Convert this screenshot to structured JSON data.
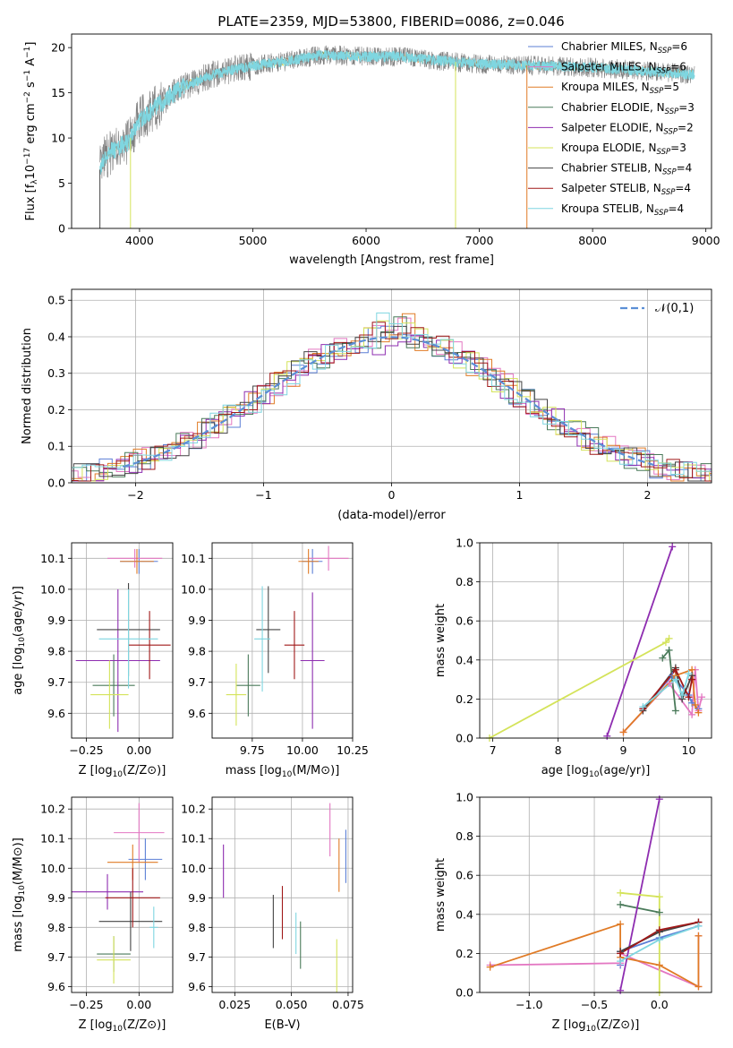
{
  "figure": {
    "title": "PLATE=2359, MJD=53800, FIBERID=0086, z=0.046"
  },
  "legend_entries": [
    {
      "label": "Chabrier MILES, N",
      "sub": "SSP",
      "suffix": "=6",
      "color": "#5b7fd6"
    },
    {
      "label": "Salpeter MILES, N",
      "sub": "SSP",
      "suffix": "=6",
      "color": "#e377c2"
    },
    {
      "label": "Kroupa MILES, N",
      "sub": "SSP",
      "suffix": "=5",
      "color": "#e07b26"
    },
    {
      "label": "Chabrier ELODIE, N",
      "sub": "SSP",
      "suffix": "=3",
      "color": "#4a7a5a"
    },
    {
      "label": "Salpeter ELODIE, N",
      "sub": "SSP",
      "suffix": "=2",
      "color": "#8e2db0"
    },
    {
      "label": "Kroupa ELODIE, N",
      "sub": "SSP",
      "suffix": "=3",
      "color": "#d4e35a"
    },
    {
      "label": "Chabrier STELIB, N",
      "sub": "SSP",
      "suffix": "=4",
      "color": "#444444"
    },
    {
      "label": "Salpeter STELIB, N",
      "sub": "SSP",
      "suffix": "=4",
      "color": "#a01818"
    },
    {
      "label": "Kroupa STELIB, N",
      "sub": "SSP",
      "suffix": "=4",
      "color": "#7fd6e0"
    }
  ],
  "chart_data": [
    {
      "id": "spectrum",
      "type": "line",
      "xlabel": "wavelength [Angstrom, rest frame]",
      "ylabel": "Flux [f",
      "xlim": [
        3400,
        9050
      ],
      "ylim": [
        0,
        21.5
      ],
      "xticks": [
        4000,
        5000,
        6000,
        7000,
        8000,
        9000
      ],
      "yticks": [
        0,
        5,
        10,
        15,
        20
      ],
      "data_color": "#7f7f7f",
      "model_color": "#7fd6e0",
      "continuum": {
        "x": [
          3650,
          3700,
          3800,
          3900,
          4000,
          4200,
          4400,
          4600,
          4800,
          5000,
          5300,
          5600,
          6000,
          6300,
          6600,
          7000,
          7500,
          8000,
          8500,
          8900
        ],
        "y": [
          6.5,
          8.0,
          9.0,
          9.5,
          12.0,
          14.0,
          15.8,
          16.8,
          17.5,
          18.0,
          18.5,
          19.2,
          19.0,
          19.0,
          18.6,
          18.2,
          18.0,
          17.8,
          17.4,
          17.0
        ]
      },
      "xrange_data": [
        3650,
        8900
      ]
    },
    {
      "id": "residuals",
      "type": "area",
      "xlabel": "(data-model)/error",
      "ylabel": "Normed distribution",
      "xlim": [
        -2.5,
        2.5
      ],
      "ylim": [
        0,
        0.53
      ],
      "xticks": [
        -2,
        -1,
        0,
        1,
        2
      ],
      "yticks": [
        0.0,
        0.1,
        0.2,
        0.3,
        0.4,
        0.5
      ],
      "grid": true,
      "reference_label": "𝒩(0,1)",
      "reference_color": "#5b8fd6"
    },
    {
      "id": "age_vs_Z",
      "type": "scatter",
      "xlabel": "Z [log",
      "ylabel": "age  [log",
      "xlim": [
        -0.32,
        0.16
      ],
      "ylim": [
        9.52,
        10.15
      ],
      "xticks": [
        -0.25,
        0.0
      ],
      "yticks": [
        9.6,
        9.7,
        9.8,
        9.9,
        10.0,
        10.1
      ],
      "points": [
        {
          "x": 0.0,
          "y": 10.09,
          "xerr": 0.09,
          "yerr": 0.04,
          "series": 0
        },
        {
          "x": -0.02,
          "y": 10.1,
          "xerr": 0.13,
          "yerr": 0.03,
          "series": 1
        },
        {
          "x": -0.01,
          "y": 10.09,
          "xerr": 0.08,
          "yerr": 0.04,
          "series": 2
        },
        {
          "x": -0.12,
          "y": 9.69,
          "xerr": 0.1,
          "yerr": 0.1,
          "series": 3
        },
        {
          "x": -0.1,
          "y": 9.77,
          "xerr": 0.2,
          "yerr": 0.23,
          "series": 4
        },
        {
          "x": -0.14,
          "y": 9.66,
          "xerr": 0.09,
          "yerr": 0.11,
          "series": 5
        },
        {
          "x": -0.05,
          "y": 9.87,
          "xerr": 0.15,
          "yerr": 0.15,
          "series": 6
        },
        {
          "x": 0.05,
          "y": 9.82,
          "xerr": 0.1,
          "yerr": 0.11,
          "series": 7
        },
        {
          "x": -0.05,
          "y": 9.84,
          "xerr": 0.14,
          "yerr": 0.16,
          "series": 8
        }
      ]
    },
    {
      "id": "age_vs_mass",
      "type": "scatter",
      "xlabel": "mass [log",
      "ylabel": "",
      "xlim": [
        9.55,
        10.25
      ],
      "ylim": [
        9.52,
        10.15
      ],
      "xticks": [
        9.75,
        10.0,
        10.25
      ],
      "yticks": [
        9.6,
        9.7,
        9.8,
        9.9,
        10.0,
        10.1
      ],
      "points": [
        {
          "x": 10.05,
          "y": 10.09,
          "xerr": 0.05,
          "yerr": 0.04,
          "series": 0
        },
        {
          "x": 10.13,
          "y": 10.1,
          "xerr": 0.1,
          "yerr": 0.04,
          "series": 1
        },
        {
          "x": 10.03,
          "y": 10.09,
          "xerr": 0.05,
          "yerr": 0.04,
          "series": 2
        },
        {
          "x": 9.73,
          "y": 9.69,
          "xerr": 0.06,
          "yerr": 0.1,
          "series": 3
        },
        {
          "x": 10.05,
          "y": 9.77,
          "xerr": 0.06,
          "yerr": 0.22,
          "series": 4
        },
        {
          "x": 9.67,
          "y": 9.66,
          "xerr": 0.05,
          "yerr": 0.1,
          "series": 5
        },
        {
          "x": 9.83,
          "y": 9.87,
          "xerr": 0.06,
          "yerr": 0.14,
          "series": 6
        },
        {
          "x": 9.96,
          "y": 9.82,
          "xerr": 0.05,
          "yerr": 0.11,
          "series": 7
        },
        {
          "x": 9.8,
          "y": 9.84,
          "xerr": 0.04,
          "yerr": 0.17,
          "series": 8
        }
      ]
    },
    {
      "id": "weight_vs_age",
      "type": "line",
      "xlabel": "age  [log",
      "ylabel": "mass weight",
      "xlim": [
        6.8,
        10.35
      ],
      "ylim": [
        0,
        1.0
      ],
      "xticks": [
        7,
        8,
        9,
        10
      ],
      "yticks": [
        0.0,
        0.2,
        0.4,
        0.6,
        0.8,
        1.0
      ],
      "grid": true,
      "series": [
        {
          "x": [
            9.3,
            9.75,
            10.0,
            10.05,
            10.15
          ],
          "y": [
            0.15,
            0.32,
            0.22,
            0.18,
            0.15
          ],
          "series": 0
        },
        {
          "x": [
            9.0,
            9.7,
            10.05,
            10.1,
            10.15,
            10.2
          ],
          "y": [
            0.03,
            0.28,
            0.12,
            0.35,
            0.14,
            0.21
          ],
          "series": 1
        },
        {
          "x": [
            9.0,
            9.8,
            10.05,
            10.1,
            10.15
          ],
          "y": [
            0.03,
            0.32,
            0.35,
            0.17,
            0.13
          ],
          "series": 2
        },
        {
          "x": [
            9.6,
            9.7,
            9.8
          ],
          "y": [
            0.41,
            0.45,
            0.14
          ],
          "series": 3
        },
        {
          "x": [
            8.75,
            9.75
          ],
          "y": [
            0.01,
            0.98
          ],
          "series": 4
        },
        {
          "x": [
            6.95,
            9.65,
            9.7
          ],
          "y": [
            0.0,
            0.49,
            0.51
          ],
          "series": 5
        },
        {
          "x": [
            9.3,
            9.8,
            9.9,
            10.05
          ],
          "y": [
            0.14,
            0.36,
            0.2,
            0.32
          ],
          "series": 6
        },
        {
          "x": [
            9.3,
            9.8,
            10.0,
            10.05
          ],
          "y": [
            0.15,
            0.35,
            0.21,
            0.3
          ],
          "series": 7
        },
        {
          "x": [
            9.3,
            9.8,
            9.9,
            10.0
          ],
          "y": [
            0.16,
            0.3,
            0.22,
            0.33
          ],
          "series": 8
        }
      ]
    },
    {
      "id": "mass_vs_Z",
      "type": "scatter",
      "xlabel": "Z [log",
      "ylabel": "mass [log",
      "xlim": [
        -0.32,
        0.16
      ],
      "ylim": [
        9.58,
        10.24
      ],
      "xticks": [
        -0.25,
        0.0
      ],
      "yticks": [
        9.6,
        9.7,
        9.8,
        9.9,
        10.0,
        10.1,
        10.2
      ],
      "points": [
        {
          "x": 0.03,
          "y": 10.03,
          "xerr": 0.08,
          "yerr": 0.07,
          "series": 0
        },
        {
          "x": 0.0,
          "y": 10.12,
          "xerr": 0.12,
          "yerr": 0.1,
          "series": 1
        },
        {
          "x": -0.03,
          "y": 10.02,
          "xerr": 0.12,
          "yerr": 0.06,
          "series": 2
        },
        {
          "x": -0.12,
          "y": 9.71,
          "xerr": 0.08,
          "yerr": 0.06,
          "series": 3
        },
        {
          "x": -0.15,
          "y": 9.92,
          "xerr": 0.17,
          "yerr": 0.06,
          "series": 4
        },
        {
          "x": -0.12,
          "y": 9.69,
          "xerr": 0.08,
          "yerr": 0.08,
          "series": 5
        },
        {
          "x": -0.04,
          "y": 9.82,
          "xerr": 0.15,
          "yerr": 0.1,
          "series": 6
        },
        {
          "x": -0.03,
          "y": 9.9,
          "xerr": 0.13,
          "yerr": 0.1,
          "series": 7
        },
        {
          "x": 0.07,
          "y": 9.8,
          "xerr": 0.02,
          "yerr": 0.07,
          "series": 8
        }
      ]
    },
    {
      "id": "mass_vs_EBV",
      "type": "scatter",
      "xlabel": "E(B-V)",
      "ylabel": "",
      "xlim": [
        0.015,
        0.077
      ],
      "ylim": [
        9.58,
        10.24
      ],
      "xticks": [
        0.025,
        0.05,
        0.075
      ],
      "yticks": [
        9.6,
        9.7,
        9.8,
        9.9,
        10.0,
        10.1,
        10.2
      ],
      "points": [
        {
          "x": 0.074,
          "y": 10.04,
          "yerr": 0.09,
          "series": 0
        },
        {
          "x": 0.067,
          "y": 10.13,
          "yerr": 0.09,
          "series": 1
        },
        {
          "x": 0.071,
          "y": 10.01,
          "yerr": 0.09,
          "series": 2
        },
        {
          "x": 0.054,
          "y": 9.74,
          "yerr": 0.08,
          "series": 3
        },
        {
          "x": 0.02,
          "y": 9.99,
          "yerr": 0.09,
          "series": 4
        },
        {
          "x": 0.07,
          "y": 9.67,
          "yerr": 0.09,
          "series": 5
        },
        {
          "x": 0.042,
          "y": 9.82,
          "yerr": 0.09,
          "series": 6
        },
        {
          "x": 0.046,
          "y": 9.85,
          "yerr": 0.09,
          "series": 7
        },
        {
          "x": 0.052,
          "y": 9.78,
          "yerr": 0.07,
          "series": 8
        }
      ]
    },
    {
      "id": "weight_vs_Z",
      "type": "line",
      "xlabel": "Z [log",
      "ylabel": "mass weight",
      "xlim": [
        -1.38,
        0.4
      ],
      "ylim": [
        0,
        1.0
      ],
      "xticks": [
        -1.0,
        -0.5,
        0.0
      ],
      "yticks": [
        0.0,
        0.2,
        0.4,
        0.6,
        0.8,
        1.0
      ],
      "grid": true,
      "series": [
        {
          "x": [
            -0.3,
            -0.3,
            0.0,
            0.3
          ],
          "y": [
            0.14,
            0.21,
            0.28,
            0.34
          ],
          "series": 0
        },
        {
          "x": [
            -1.3,
            -0.3,
            -0.3,
            0.3,
            0.3
          ],
          "y": [
            0.14,
            0.15,
            0.2,
            0.03,
            0.29
          ],
          "series": 1
        },
        {
          "x": [
            -1.3,
            -0.3,
            -0.3,
            0.0,
            0.3,
            0.3
          ],
          "y": [
            0.13,
            0.35,
            0.18,
            0.14,
            0.03,
            0.29
          ],
          "series": 2
        },
        {
          "x": [
            -0.3,
            0.0
          ],
          "y": [
            0.45,
            0.41
          ],
          "series": 3
        },
        {
          "x": [
            -0.3,
            0.0
          ],
          "y": [
            0.01,
            0.99
          ],
          "series": 4
        },
        {
          "x": [
            -0.3,
            0.0,
            0.0
          ],
          "y": [
            0.51,
            0.49,
            0.0
          ],
          "series": 5
        },
        {
          "x": [
            -0.3,
            0.0,
            0.3
          ],
          "y": [
            0.21,
            0.31,
            0.36
          ],
          "series": 6
        },
        {
          "x": [
            -0.3,
            0.0,
            0.3
          ],
          "y": [
            0.2,
            0.32,
            0.36
          ],
          "series": 7
        },
        {
          "x": [
            -0.3,
            0.0,
            0.3
          ],
          "y": [
            0.16,
            0.27,
            0.34
          ],
          "series": 8
        }
      ]
    }
  ]
}
